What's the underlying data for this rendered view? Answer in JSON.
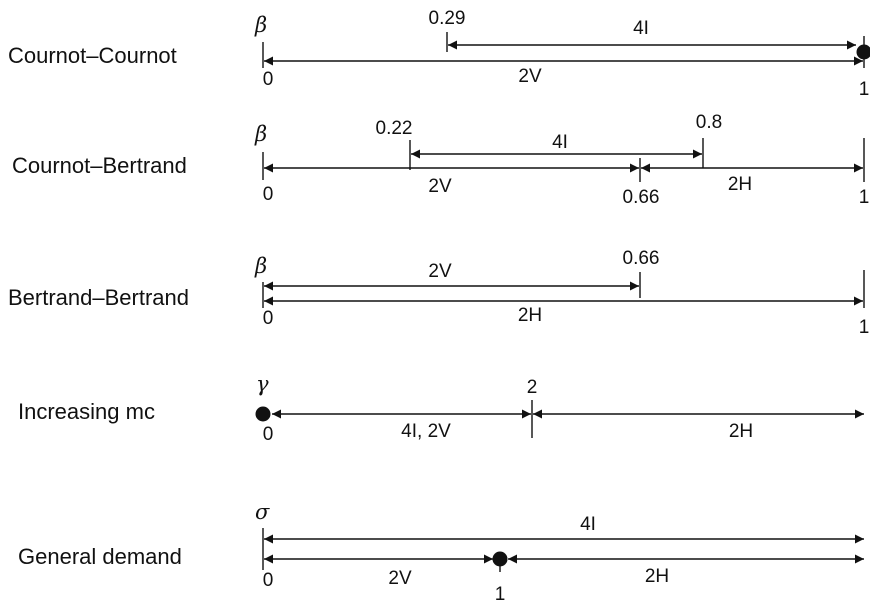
{
  "rows": [
    {
      "label": "Cournot–Cournot",
      "symbol": "β",
      "ticks": [
        {
          "v": "0.29"
        }
      ],
      "segments": [
        {
          "text": "4I",
          "from": "0.29",
          "to": "1",
          "endpoint_dot": "right"
        },
        {
          "text": "2V",
          "from": "0",
          "to": "1"
        }
      ],
      "start": "0",
      "end": "1"
    },
    {
      "label": "Cournot–Bertrand",
      "symbol": "β",
      "ticks": [
        {
          "v": "0.22"
        },
        {
          "v": "0.8"
        },
        {
          "v": "0.66"
        }
      ],
      "segments": [
        {
          "text": "4I",
          "from": "0.22",
          "to": "0.8"
        },
        {
          "text": "2V",
          "from": "0",
          "to": "0.66"
        },
        {
          "text": "2H",
          "from": "0.66",
          "to": "1"
        }
      ],
      "start": "0",
      "end": "1"
    },
    {
      "label": "Bertrand–Bertrand",
      "symbol": "β",
      "ticks": [
        {
          "v": "0.66"
        }
      ],
      "segments": [
        {
          "text": "2V",
          "from": "0",
          "to": "0.66"
        },
        {
          "text": "2H",
          "from": "0",
          "to": "1"
        }
      ],
      "start": "0",
      "end": "1"
    },
    {
      "label": "Increasing mc",
      "symbol": "γ",
      "ticks": [
        {
          "v": "2"
        }
      ],
      "segments": [
        {
          "text": "4I, 2V",
          "from": "0",
          "to": "2",
          "endpoint_dot": "left"
        },
        {
          "text": "2H",
          "from": "2",
          "to": "∞"
        }
      ],
      "start": "0",
      "end": ""
    },
    {
      "label": "General demand",
      "symbol": "σ",
      "ticks": [],
      "segments": [
        {
          "text": "4I",
          "from": "0",
          "to": "∞"
        },
        {
          "text": "2V",
          "from": "0",
          "to": "1",
          "endpoint_dot": "right"
        },
        {
          "text": "2H",
          "from": "1",
          "to": "∞"
        }
      ],
      "start": "0",
      "end": "1"
    }
  ]
}
